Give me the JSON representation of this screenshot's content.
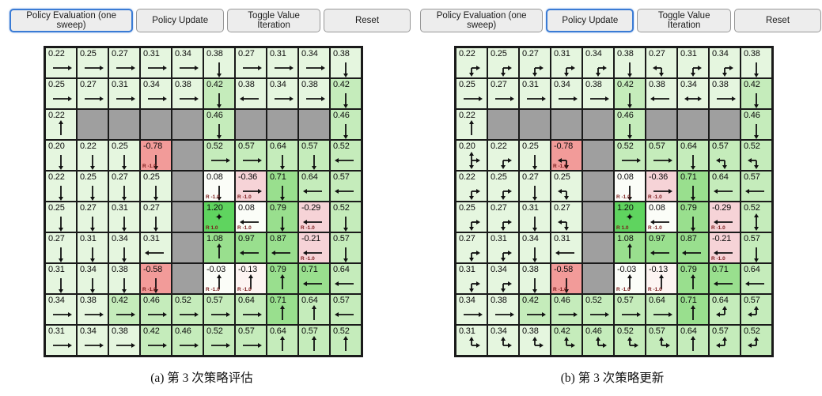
{
  "toolbar": {
    "buttons": [
      "Policy Evaluation (one sweep)",
      "Policy Update",
      "Toggle Value Iteration",
      "Reset"
    ]
  },
  "colors": {
    "wall": "#9f9f9f",
    "border": "#1a1a1a",
    "active_button_border": "#3a7bd5",
    "reward_label": "#7a1a1a",
    "value_scale": [
      {
        "min": 1.15,
        "color": "#5fd45f"
      },
      {
        "min": 0.68,
        "color": "#99df8e"
      },
      {
        "min": 0.4,
        "color": "#c5ecbb"
      },
      {
        "min": 0.15,
        "color": "#e5f6df"
      },
      {
        "min": -0.06,
        "color": "#fbfdf8"
      },
      {
        "min": -0.17,
        "color": "#fdf4f2"
      },
      {
        "min": -0.45,
        "color": "#f6d3d7"
      },
      {
        "min": -9,
        "color": "#f29b99"
      }
    ]
  },
  "panels": [
    {
      "id": "a",
      "active_button": 0,
      "caption": "(a) 第 3 次策略评估",
      "grid": {
        "rows": 10,
        "cols": 10,
        "cells": [
          [
            {
              "v": "0.22",
              "a": "R"
            },
            {
              "v": "0.25",
              "a": "R"
            },
            {
              "v": "0.27",
              "a": "R"
            },
            {
              "v": "0.31",
              "a": "R"
            },
            {
              "v": "0.34",
              "a": "R"
            },
            {
              "v": "0.38",
              "a": "D"
            },
            {
              "v": "0.27",
              "a": "R"
            },
            {
              "v": "0.31",
              "a": "R"
            },
            {
              "v": "0.34",
              "a": "R"
            },
            {
              "v": "0.38",
              "a": "D"
            }
          ],
          [
            {
              "v": "0.25",
              "a": "R"
            },
            {
              "v": "0.27",
              "a": "R"
            },
            {
              "v": "0.31",
              "a": "R"
            },
            {
              "v": "0.34",
              "a": "R"
            },
            {
              "v": "0.38",
              "a": "R"
            },
            {
              "v": "0.42",
              "a": "D"
            },
            {
              "v": "0.38",
              "a": "L"
            },
            {
              "v": "0.34",
              "a": "R"
            },
            {
              "v": "0.38",
              "a": "R"
            },
            {
              "v": "0.42",
              "a": "D"
            }
          ],
          [
            {
              "v": "0.22",
              "a": "U"
            },
            {
              "w": 1
            },
            {
              "w": 1
            },
            {
              "w": 1
            },
            {
              "w": 1
            },
            {
              "v": "0.46",
              "a": "D"
            },
            {
              "w": 1
            },
            {
              "w": 1
            },
            {
              "w": 1
            },
            {
              "v": "0.46",
              "a": "D"
            }
          ],
          [
            {
              "v": "0.20",
              "a": "D"
            },
            {
              "v": "0.22",
              "a": "D"
            },
            {
              "v": "0.25",
              "a": "D"
            },
            {
              "v": "-0.78",
              "a": "D",
              "rw": "R -1.0"
            },
            {
              "w": 1
            },
            {
              "v": "0.52",
              "a": "R"
            },
            {
              "v": "0.57",
              "a": "R"
            },
            {
              "v": "0.64",
              "a": "D"
            },
            {
              "v": "0.57",
              "a": "D"
            },
            {
              "v": "0.52",
              "a": "L"
            }
          ],
          [
            {
              "v": "0.22",
              "a": "D"
            },
            {
              "v": "0.25",
              "a": "D"
            },
            {
              "v": "0.27",
              "a": "D"
            },
            {
              "v": "0.25",
              "a": "D"
            },
            {
              "w": 1
            },
            {
              "v": "0.08",
              "a": "D",
              "rw": "R -1.0"
            },
            {
              "v": "-0.36",
              "a": "R",
              "rw": "R -1.0"
            },
            {
              "v": "0.71",
              "a": "D"
            },
            {
              "v": "0.64",
              "a": "L"
            },
            {
              "v": "0.57",
              "a": "L"
            }
          ],
          [
            {
              "v": "0.25",
              "a": "D"
            },
            {
              "v": "0.27",
              "a": "D"
            },
            {
              "v": "0.31",
              "a": "D"
            },
            {
              "v": "0.27",
              "a": "D"
            },
            {
              "w": 1
            },
            {
              "v": "1.20",
              "m": "✦",
              "rw": "R 1.0"
            },
            {
              "v": "0.08",
              "a": "L",
              "rw": "R -1.0"
            },
            {
              "v": "0.79",
              "a": "D"
            },
            {
              "v": "-0.29",
              "a": "L",
              "rw": "R -1.0"
            },
            {
              "v": "0.52",
              "a": "D"
            }
          ],
          [
            {
              "v": "0.27",
              "a": "D"
            },
            {
              "v": "0.31",
              "a": "D"
            },
            {
              "v": "0.34",
              "a": "D"
            },
            {
              "v": "0.31",
              "a": "L"
            },
            {
              "w": 1
            },
            {
              "v": "1.08",
              "a": "U"
            },
            {
              "v": "0.97",
              "a": "L"
            },
            {
              "v": "0.87",
              "a": "L"
            },
            {
              "v": "-0.21",
              "a": "L",
              "rw": "R -1.0"
            },
            {
              "v": "0.57",
              "a": "D"
            }
          ],
          [
            {
              "v": "0.31",
              "a": "D"
            },
            {
              "v": "0.34",
              "a": "D"
            },
            {
              "v": "0.38",
              "a": "D"
            },
            {
              "v": "-0.58",
              "a": "D",
              "rw": "R -1.0"
            },
            {
              "w": 1
            },
            {
              "v": "-0.03",
              "a": "U",
              "rw": "R -1.0"
            },
            {
              "v": "-0.13",
              "a": "U",
              "rw": "R -1.0"
            },
            {
              "v": "0.79",
              "a": "U"
            },
            {
              "v": "0.71",
              "a": "L"
            },
            {
              "v": "0.64",
              "a": "L"
            }
          ],
          [
            {
              "v": "0.34",
              "a": "R"
            },
            {
              "v": "0.38",
              "a": "R"
            },
            {
              "v": "0.42",
              "a": "R"
            },
            {
              "v": "0.46",
              "a": "R"
            },
            {
              "v": "0.52",
              "a": "R"
            },
            {
              "v": "0.57",
              "a": "R"
            },
            {
              "v": "0.64",
              "a": "R"
            },
            {
              "v": "0.71",
              "a": "U"
            },
            {
              "v": "0.64",
              "a": "U"
            },
            {
              "v": "0.57",
              "a": "L"
            }
          ],
          [
            {
              "v": "0.31",
              "a": "R"
            },
            {
              "v": "0.34",
              "a": "R"
            },
            {
              "v": "0.38",
              "a": "R"
            },
            {
              "v": "0.42",
              "a": "R"
            },
            {
              "v": "0.46",
              "a": "R"
            },
            {
              "v": "0.52",
              "a": "R"
            },
            {
              "v": "0.57",
              "a": "R"
            },
            {
              "v": "0.64",
              "a": "U"
            },
            {
              "v": "0.57",
              "a": "U"
            },
            {
              "v": "0.52",
              "a": "U"
            }
          ]
        ]
      }
    },
    {
      "id": "b",
      "active_button": 1,
      "caption": "(b) 第 3 次策略更新",
      "grid": {
        "rows": 10,
        "cols": 10,
        "cells": [
          [
            {
              "v": "0.22",
              "a": "DR"
            },
            {
              "v": "0.25",
              "a": "DR"
            },
            {
              "v": "0.27",
              "a": "DR"
            },
            {
              "v": "0.31",
              "a": "DR"
            },
            {
              "v": "0.34",
              "a": "DR"
            },
            {
              "v": "0.38",
              "a": "D"
            },
            {
              "v": "0.27",
              "a": "LD"
            },
            {
              "v": "0.31",
              "a": "DR"
            },
            {
              "v": "0.34",
              "a": "DR"
            },
            {
              "v": "0.38",
              "a": "D"
            }
          ],
          [
            {
              "v": "0.25",
              "a": "R"
            },
            {
              "v": "0.27",
              "a": "R"
            },
            {
              "v": "0.31",
              "a": "R"
            },
            {
              "v": "0.34",
              "a": "R"
            },
            {
              "v": "0.38",
              "a": "R"
            },
            {
              "v": "0.42",
              "a": "D"
            },
            {
              "v": "0.38",
              "a": "L"
            },
            {
              "v": "0.34",
              "a": "LR"
            },
            {
              "v": "0.38",
              "a": "R"
            },
            {
              "v": "0.42",
              "a": "D"
            }
          ],
          [
            {
              "v": "0.22",
              "a": "U"
            },
            {
              "w": 1
            },
            {
              "w": 1
            },
            {
              "w": 1
            },
            {
              "w": 1
            },
            {
              "v": "0.46",
              "a": "D"
            },
            {
              "w": 1
            },
            {
              "w": 1
            },
            {
              "w": 1
            },
            {
              "v": "0.46",
              "a": "D"
            }
          ],
          [
            {
              "v": "0.20",
              "a": "URD"
            },
            {
              "v": "0.22",
              "a": "DR"
            },
            {
              "v": "0.25",
              "a": "D"
            },
            {
              "v": "-0.78",
              "a": "LD",
              "rw": "R -1.0"
            },
            {
              "w": 1
            },
            {
              "v": "0.52",
              "a": "R"
            },
            {
              "v": "0.57",
              "a": "R"
            },
            {
              "v": "0.64",
              "a": "D"
            },
            {
              "v": "0.57",
              "a": "LD"
            },
            {
              "v": "0.52",
              "a": "LD"
            }
          ],
          [
            {
              "v": "0.22",
              "a": "DR"
            },
            {
              "v": "0.25",
              "a": "DR"
            },
            {
              "v": "0.27",
              "a": "D"
            },
            {
              "v": "0.25",
              "a": "LD"
            },
            {
              "w": 1
            },
            {
              "v": "0.08",
              "a": "D",
              "rw": "R -1.0"
            },
            {
              "v": "-0.36",
              "a": "R",
              "rw": "R -1.0"
            },
            {
              "v": "0.71",
              "a": "D"
            },
            {
              "v": "0.64",
              "a": "L"
            },
            {
              "v": "0.57",
              "a": "L"
            }
          ],
          [
            {
              "v": "0.25",
              "a": "DR"
            },
            {
              "v": "0.27",
              "a": "DR"
            },
            {
              "v": "0.31",
              "a": "D"
            },
            {
              "v": "0.27",
              "a": "LD"
            },
            {
              "w": 1
            },
            {
              "v": "1.20",
              "m": "✦",
              "rw": "R 1.0"
            },
            {
              "v": "0.08",
              "a": "L",
              "rw": "R -1.0"
            },
            {
              "v": "0.79",
              "a": "D"
            },
            {
              "v": "-0.29",
              "a": "L",
              "rw": "R -1.0"
            },
            {
              "v": "0.52",
              "a": "UD"
            }
          ],
          [
            {
              "v": "0.27",
              "a": "DR"
            },
            {
              "v": "0.31",
              "a": "DR"
            },
            {
              "v": "0.34",
              "a": "D"
            },
            {
              "v": "0.31",
              "a": "L"
            },
            {
              "w": 1
            },
            {
              "v": "1.08",
              "a": "U"
            },
            {
              "v": "0.97",
              "a": "L"
            },
            {
              "v": "0.87",
              "a": "L"
            },
            {
              "v": "-0.21",
              "a": "L",
              "rw": "R -1.0"
            },
            {
              "v": "0.57",
              "a": "D"
            }
          ],
          [
            {
              "v": "0.31",
              "a": "DR"
            },
            {
              "v": "0.34",
              "a": "DR"
            },
            {
              "v": "0.38",
              "a": "D"
            },
            {
              "v": "-0.58",
              "a": "D",
              "rw": "R -1.0"
            },
            {
              "w": 1
            },
            {
              "v": "-0.03",
              "a": "U",
              "rw": "R -1.0"
            },
            {
              "v": "-0.13",
              "a": "U",
              "rw": "R -1.0"
            },
            {
              "v": "0.79",
              "a": "U"
            },
            {
              "v": "0.71",
              "a": "L"
            },
            {
              "v": "0.64",
              "a": "L"
            }
          ],
          [
            {
              "v": "0.34",
              "a": "R"
            },
            {
              "v": "0.38",
              "a": "R"
            },
            {
              "v": "0.42",
              "a": "R"
            },
            {
              "v": "0.46",
              "a": "R"
            },
            {
              "v": "0.52",
              "a": "R"
            },
            {
              "v": "0.57",
              "a": "R"
            },
            {
              "v": "0.64",
              "a": "R"
            },
            {
              "v": "0.71",
              "a": "U"
            },
            {
              "v": "0.64",
              "a": "UL"
            },
            {
              "v": "0.57",
              "a": "UL"
            }
          ],
          [
            {
              "v": "0.31",
              "a": "UR"
            },
            {
              "v": "0.34",
              "a": "UR"
            },
            {
              "v": "0.38",
              "a": "UR"
            },
            {
              "v": "0.42",
              "a": "UR"
            },
            {
              "v": "0.46",
              "a": "UR"
            },
            {
              "v": "0.52",
              "a": "UR"
            },
            {
              "v": "0.57",
              "a": "UR"
            },
            {
              "v": "0.64",
              "a": "U"
            },
            {
              "v": "0.57",
              "a": "UL"
            },
            {
              "v": "0.52",
              "a": "UL"
            }
          ]
        ]
      }
    }
  ]
}
